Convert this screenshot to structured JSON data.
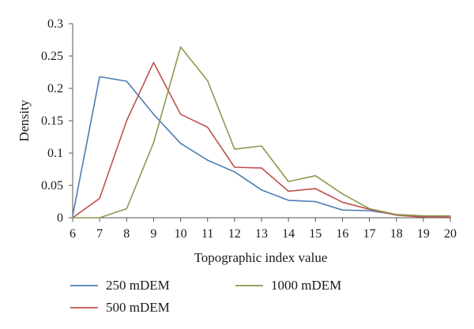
{
  "chart_data": {
    "type": "line",
    "title": "",
    "xlabel": "Topographic index value",
    "ylabel": "Density",
    "x": [
      6,
      7,
      8,
      9,
      10,
      11,
      12,
      13,
      14,
      15,
      16,
      17,
      18,
      19,
      20
    ],
    "xlim": [
      6,
      20
    ],
    "ylim": [
      0,
      0.3
    ],
    "x_ticks": [
      "6",
      "7",
      "8",
      "9",
      "10",
      "11",
      "12",
      "13",
      "14",
      "15",
      "16",
      "17",
      "18",
      "19",
      "20"
    ],
    "y_ticks": [
      "0",
      "0.05",
      "0.1",
      "0.15",
      "0.2",
      "0.25",
      "0.3"
    ],
    "y_tick_values": [
      0,
      0.05,
      0.1,
      0.15,
      0.2,
      0.25,
      0.3
    ],
    "grid": false,
    "legend_position": "bottom",
    "series": [
      {
        "name": "250 mDEM",
        "color": "#4a7eb4",
        "values": [
          0.003,
          0.218,
          0.211,
          0.16,
          0.115,
          0.089,
          0.071,
          0.043,
          0.027,
          0.025,
          0.012,
          0.011,
          0.005,
          0.002,
          0.001
        ]
      },
      {
        "name": "500 mDEM",
        "color": "#c0504d",
        "values": [
          0.0,
          0.03,
          0.15,
          0.24,
          0.16,
          0.14,
          0.078,
          0.077,
          0.041,
          0.045,
          0.024,
          0.013,
          0.004,
          0.001,
          0.001
        ]
      },
      {
        "name": "1000 mDEM",
        "color": "#8a9a4f",
        "values": [
          0.0,
          0.0,
          0.014,
          0.116,
          0.264,
          0.212,
          0.106,
          0.111,
          0.056,
          0.065,
          0.037,
          0.014,
          0.005,
          0.003,
          0.003
        ]
      }
    ]
  }
}
